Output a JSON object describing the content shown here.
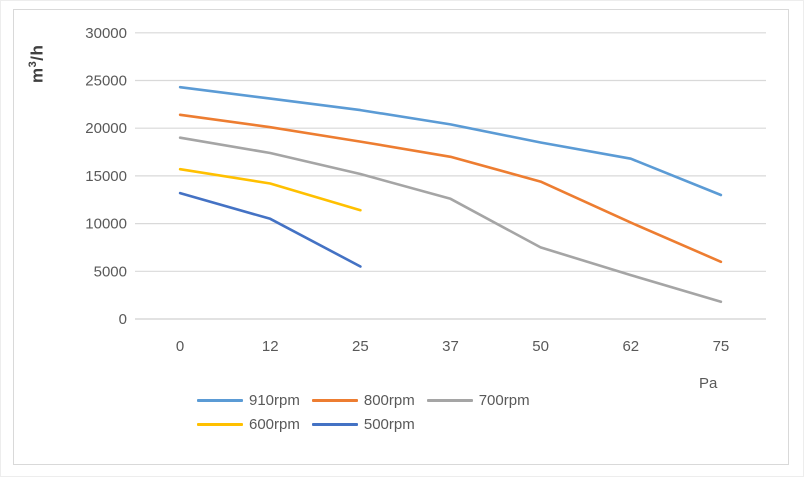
{
  "chart_data": {
    "type": "line",
    "title": "",
    "xlabel": "Pa",
    "ylabel": "m3/h",
    "ylabel_parts": {
      "base": "m",
      "sup": "3",
      "rest": "/h"
    },
    "categories": [
      "0",
      "12",
      "25",
      "37",
      "50",
      "62",
      "75"
    ],
    "y_ticks": [
      0,
      5000,
      10000,
      15000,
      20000,
      25000,
      30000
    ],
    "ylim": [
      0,
      30000
    ],
    "grid": true,
    "legend_position": "bottom",
    "series": [
      {
        "name": "910rpm",
        "color": "#5B9BD5",
        "values": [
          24300,
          23100,
          21900,
          20400,
          18500,
          16800,
          13000
        ]
      },
      {
        "name": "800rpm",
        "color": "#ED7D31",
        "values": [
          21400,
          20100,
          18600,
          17000,
          14400,
          10100,
          6000
        ]
      },
      {
        "name": "700rpm",
        "color": "#A5A5A5",
        "values": [
          19000,
          17400,
          15200,
          12600,
          7500,
          4600,
          1800
        ]
      },
      {
        "name": "600rpm",
        "color": "#FFC000",
        "values": [
          15700,
          14200,
          11400,
          null,
          null,
          null,
          null
        ]
      },
      {
        "name": "500rpm",
        "color": "#4472C4",
        "values": [
          13200,
          10500,
          5500,
          null,
          null,
          null,
          null
        ]
      }
    ]
  },
  "colors": {
    "grid": "#D9D9D9",
    "axis": "#D0D0D0",
    "text": "#595959",
    "frame_border": "#D9D9D9"
  },
  "legend": {
    "rows": [
      [
        0,
        1,
        2
      ],
      [
        3,
        4
      ]
    ]
  }
}
